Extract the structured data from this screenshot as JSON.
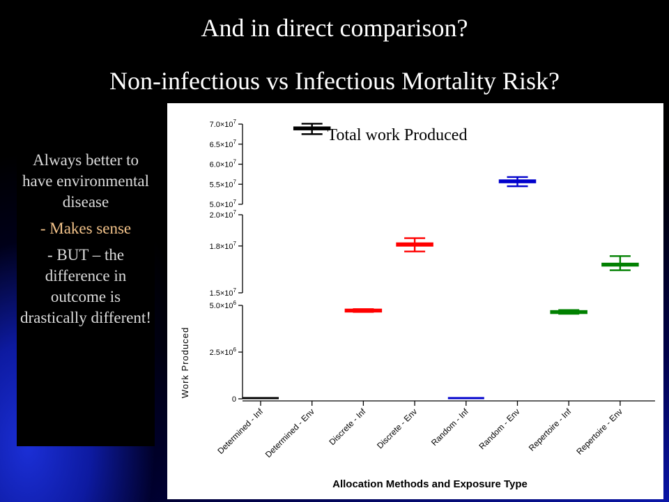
{
  "slide": {
    "title": "And in direct comparison?",
    "subtitle": "Non-infectious vs Infectious Mortality Risk?",
    "panel_lines": [
      "Always better to have environmental disease",
      "- Makes sense",
      "- BUT – the difference in outcome is drastically different!"
    ],
    "accent_color": "#f3c38a"
  },
  "chart_data": {
    "type": "box",
    "annotation": "Total work Produced",
    "xlabel": "Allocation  Methods and Exposure Type",
    "ylabel": "Work Produced",
    "categories": [
      "Determined - Inf",
      "Determined - Env",
      "Discrete - Inf",
      "Discrete - Env",
      "Random - Inf",
      "Random - Env",
      "Repertoire - Inf",
      "Repertoire - Env"
    ],
    "colors": [
      "#000000",
      "#000000",
      "#ff0000",
      "#ff0000",
      "#0000cc",
      "#0000cc",
      "#008000",
      "#008000"
    ],
    "boxes": [
      {
        "category": "Determined - Inf",
        "min": 0,
        "q1": 0,
        "median": 0,
        "q3": 0,
        "max": 0
      },
      {
        "category": "Determined - Env",
        "min": 67500000,
        "q1": 68700000,
        "median": 68900000,
        "q3": 69100000,
        "max": 70100000
      },
      {
        "category": "Discrete - Inf",
        "min": 4650000,
        "q1": 4700000,
        "median": 4730000,
        "q3": 4760000,
        "max": 4800000
      },
      {
        "category": "Discrete - Env",
        "min": 17650000,
        "q1": 17950000,
        "median": 18050000,
        "q3": 18150000,
        "max": 18500000
      },
      {
        "category": "Random - Inf",
        "min": 0,
        "q1": 0,
        "median": 0,
        "q3": 0,
        "max": 0
      },
      {
        "category": "Random - Env",
        "min": 54500000,
        "q1": 55300000,
        "median": 55600000,
        "q3": 55900000,
        "max": 56800000
      },
      {
        "category": "Repertoire - Inf",
        "min": 4550000,
        "q1": 4600000,
        "median": 4640000,
        "q3": 4680000,
        "max": 4750000
      },
      {
        "category": "Repertoire - Env",
        "min": 16450000,
        "q1": 16750000,
        "median": 16800000,
        "q3": 16850000,
        "max": 17350000
      }
    ],
    "segments": [
      {
        "range": [
          50000000,
          70000000
        ],
        "ticks": [
          50000000,
          55000000,
          60000000,
          65000000,
          70000000
        ],
        "tick_labels": [
          "5.0×10⁷",
          "5.5×10⁷",
          "6.0×10⁷",
          "6.5×10⁷",
          "7.0×10⁷"
        ]
      },
      {
        "range": [
          15000000,
          20000000
        ],
        "ticks": [
          15000000,
          18000000,
          20000000
        ],
        "tick_labels": [
          "1.5×10⁷",
          "1.8×10⁷",
          "2.0×10⁷"
        ]
      },
      {
        "range": [
          0,
          5000000
        ],
        "ticks": [
          0,
          2500000,
          5000000
        ],
        "tick_labels": [
          "0",
          "2.5×10⁶",
          "5.0×10⁶"
        ]
      }
    ]
  }
}
